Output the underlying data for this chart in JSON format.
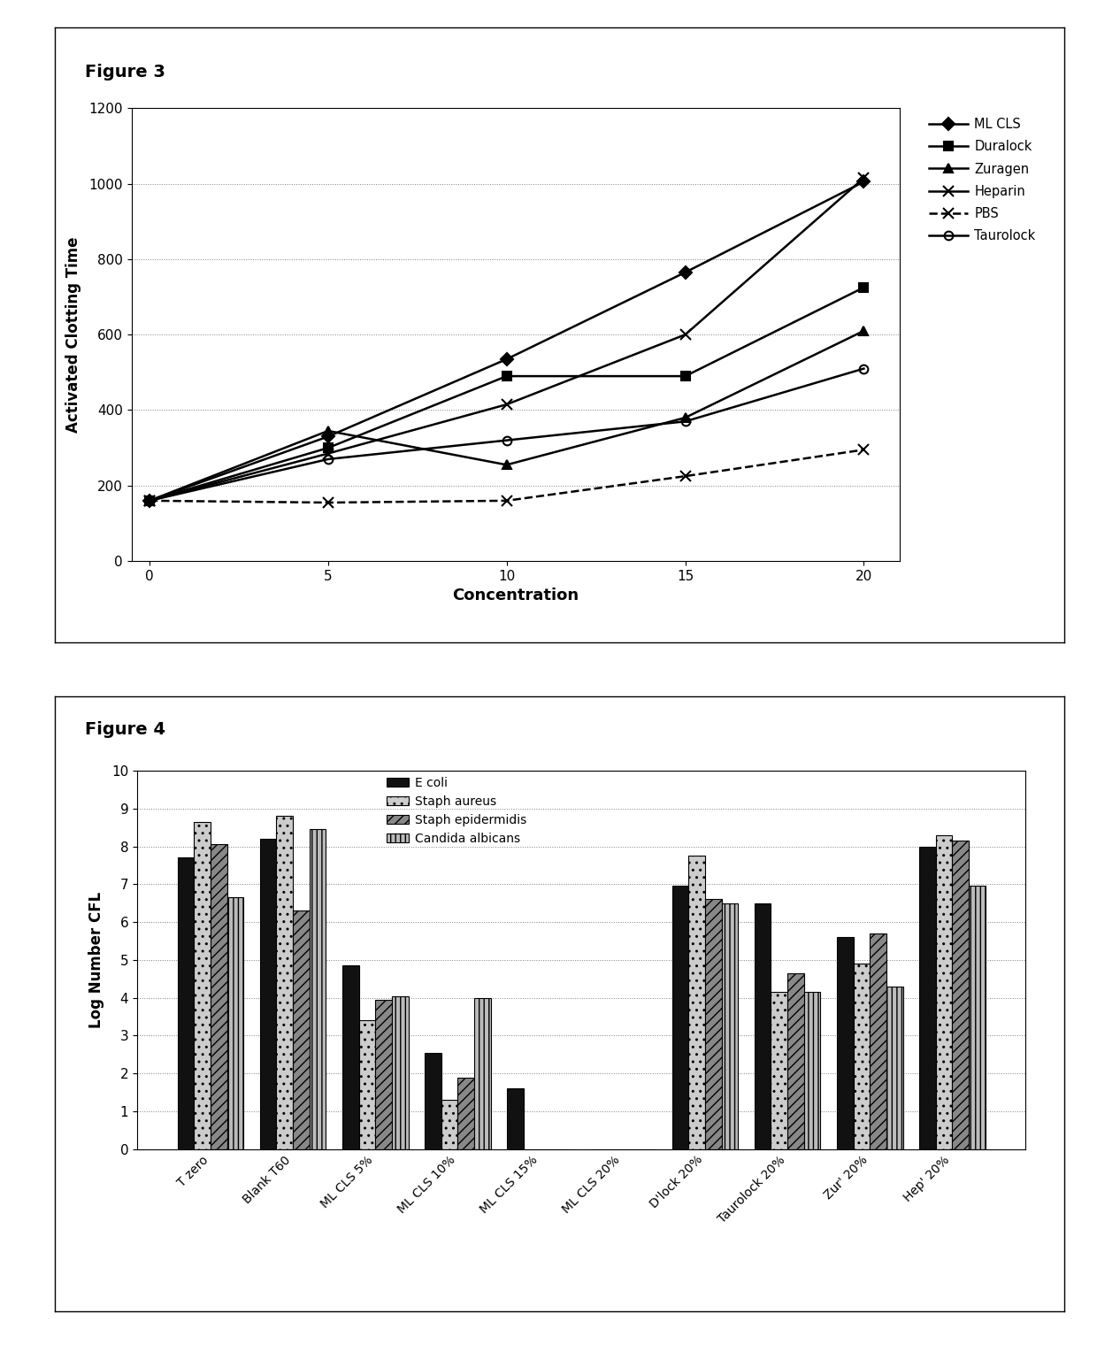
{
  "fig3": {
    "title": "Figure 3",
    "xlabel": "Concentration",
    "ylabel": "Activated Clotting Time",
    "x": [
      0,
      5,
      10,
      15,
      20
    ],
    "series": {
      "ML CLS": [
        160,
        330,
        535,
        765,
        1005
      ],
      "Duralock": [
        160,
        300,
        490,
        490,
        725
      ],
      "Zuragen": [
        160,
        345,
        255,
        380,
        610
      ],
      "Heparin": [
        160,
        285,
        415,
        600,
        1015
      ],
      "PBS": [
        160,
        155,
        160,
        225,
        295
      ],
      "Taurolock": [
        160,
        270,
        320,
        370,
        510
      ]
    },
    "markers": {
      "ML CLS": "D",
      "Duralock": "s",
      "Zuragen": "^",
      "Heparin": "x",
      "PBS": "x",
      "Taurolock": "o"
    },
    "linestyles": {
      "ML CLS": "-",
      "Duralock": "-",
      "Zuragen": "-",
      "Heparin": "-",
      "PBS": "--",
      "Taurolock": "-"
    },
    "ylim": [
      0,
      1200
    ],
    "yticks": [
      0,
      200,
      400,
      600,
      800,
      1000,
      1200
    ],
    "xticks": [
      0,
      5,
      10,
      15,
      20
    ]
  },
  "fig4": {
    "title": "Figure 4",
    "ylabel": "Log Number CFL",
    "categories": [
      "T zero",
      "Blank T60",
      "ML CLS 5%",
      "ML CLS 10%",
      "ML CLS 15%",
      "ML CLS 20%",
      "D'lock 20%",
      "Taurolock 20%",
      "Zur' 20%",
      "Hep' 20%"
    ],
    "series": {
      "E coli": [
        7.7,
        8.2,
        4.85,
        2.55,
        1.6,
        0.0,
        6.95,
        6.5,
        5.6,
        8.0
      ],
      "Staph aureus": [
        8.65,
        8.8,
        3.4,
        1.3,
        0.0,
        0.0,
        7.75,
        4.15,
        4.9,
        8.3
      ],
      "Staph epidermidis": [
        8.05,
        6.3,
        3.95,
        1.9,
        0.0,
        0.0,
        6.6,
        4.65,
        5.7,
        8.15
      ],
      "Candida albicans": [
        6.65,
        8.45,
        4.05,
        4.0,
        0.0,
        0.0,
        6.5,
        4.15,
        4.3,
        6.95
      ]
    },
    "ylim": [
      0,
      10
    ],
    "yticks": [
      0,
      1,
      2,
      3,
      4,
      5,
      6,
      7,
      8,
      9,
      10
    ]
  }
}
